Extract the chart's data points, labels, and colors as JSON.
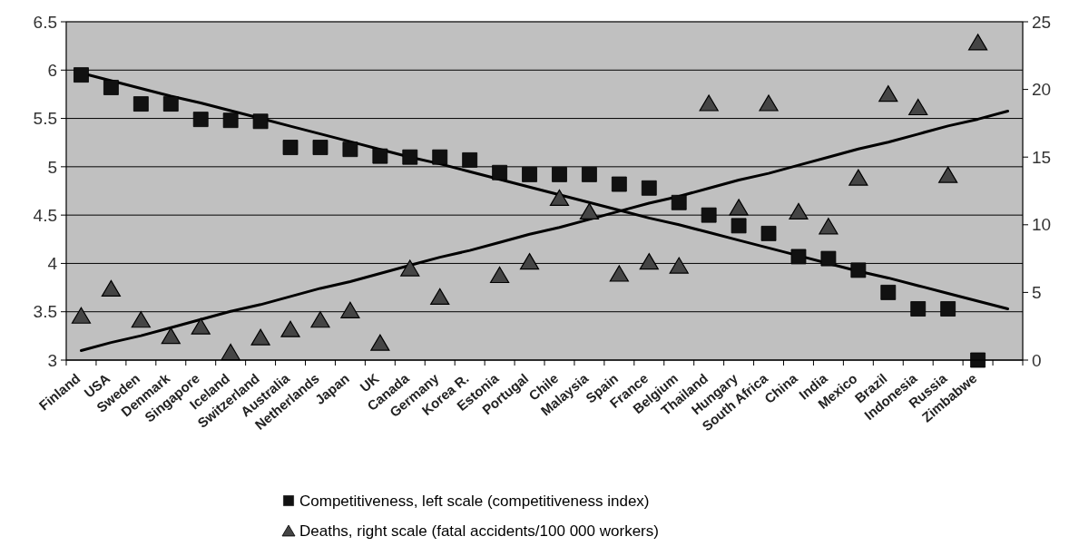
{
  "chart_data": {
    "type": "scatter",
    "categories": [
      "Finland",
      "USA",
      "Sweden",
      "Denmark",
      "Singapore",
      "Iceland",
      "Switzerland",
      "Australia",
      "Netherlands",
      "Japan",
      "UK",
      "Canada",
      "Germany",
      "Korea R.",
      "Estonia",
      "Portugal",
      "Chile",
      "Malaysia",
      "Spain",
      "France",
      "Belgium",
      "Thailand",
      "Hungary",
      "South Africa",
      "China",
      "India",
      "Mexico",
      "Brazil",
      "Indonesia",
      "Russia",
      "Zimbabwe",
      null
    ],
    "series": [
      {
        "name": "Competitiveness, left scale (competitiveness index)",
        "marker": "square",
        "color": "#111111",
        "values": [
          5.95,
          5.82,
          5.65,
          5.65,
          5.49,
          5.48,
          5.47,
          5.2,
          5.2,
          5.18,
          5.11,
          5.1,
          5.1,
          5.07,
          4.94,
          4.92,
          4.92,
          4.92,
          4.82,
          4.78,
          4.63,
          4.5,
          4.39,
          4.31,
          4.07,
          4.05,
          3.93,
          3.7,
          3.53,
          3.53,
          3.0,
          null
        ]
      },
      {
        "name": "Deaths, right scale (fatal accidents/100 000 workers)",
        "marker": "triangle",
        "axis": "y2",
        "color": "#454545",
        "values": [
          3.3,
          5.3,
          3.0,
          1.8,
          2.5,
          0.6,
          1.7,
          2.3,
          3.0,
          3.7,
          1.3,
          6.8,
          4.7,
          null,
          6.3,
          7.3,
          12.0,
          11.0,
          6.4,
          7.3,
          7.0,
          19.0,
          11.3,
          19.0,
          11.0,
          9.9,
          13.5,
          19.7,
          18.7,
          13.7,
          23.5,
          null
        ]
      },
      {
        "type": "line",
        "marker": "none",
        "color": "#000000",
        "values": [
          5.97,
          5.89,
          5.81,
          5.73,
          5.66,
          5.58,
          5.5,
          5.42,
          5.34,
          5.26,
          5.18,
          5.1,
          5.03,
          4.95,
          4.87,
          4.79,
          4.71,
          4.63,
          4.55,
          4.47,
          4.4,
          4.32,
          4.24,
          4.16,
          4.08,
          4.0,
          3.92,
          3.85,
          3.77,
          3.69,
          3.61,
          3.53
        ]
      },
      {
        "type": "line",
        "marker": "none",
        "axis": "y2",
        "color": "#000000",
        "values": [
          0.7,
          1.3,
          1.8,
          2.4,
          3.0,
          3.6,
          4.1,
          4.7,
          5.3,
          5.8,
          6.4,
          7.0,
          7.6,
          8.1,
          8.7,
          9.3,
          9.8,
          10.4,
          11.0,
          11.6,
          12.1,
          12.7,
          13.3,
          13.8,
          14.4,
          15.0,
          15.6,
          16.1,
          16.7,
          17.3,
          17.8,
          18.4
        ]
      }
    ],
    "ylim": [
      3,
      6.5
    ],
    "yticks": [
      3,
      3.5,
      4,
      4.5,
      5,
      5.5,
      6,
      6.5
    ],
    "y2lim": [
      0,
      25
    ],
    "y2ticks": [
      0,
      5,
      10,
      15,
      20,
      25
    ],
    "grid": "y",
    "legend": "bottom"
  }
}
